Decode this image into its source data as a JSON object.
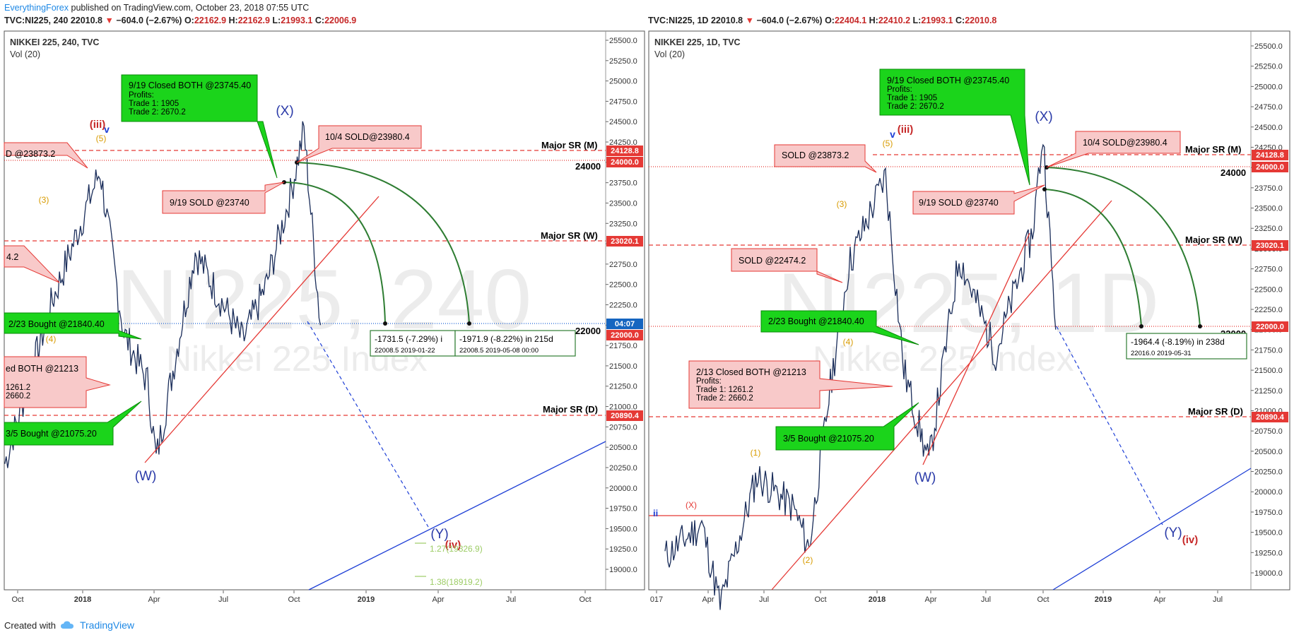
{
  "header": {
    "author": "EverythingForex",
    "published_text": " published on TradingView.com, October 23, 2018 07:55 UTC"
  },
  "left": {
    "quote_symbol": "TVC:NI225, 240",
    "quote_last": "22010.8",
    "quote_change": "−604.0 (−2.67%)",
    "quote_ohlc": {
      "o": "22162.9",
      "h": "22162.9",
      "l": "21993.1",
      "c": "22006.9"
    },
    "title": "NIKKEI 225, 240, TVC",
    "vol": "Vol (20)",
    "watermark1": "NI225, 240",
    "watermark2": "Nikkei 225 Index",
    "x_ticks": [
      "Oct",
      "2018",
      "Apr",
      "Jul",
      "Oct",
      "2019",
      "Apr",
      "Jul",
      "Oct"
    ],
    "y_ticks": [
      "25500.0",
      "25250.0",
      "25000.0",
      "24750.0",
      "24500.0",
      "24250.0",
      "24000.0",
      "23750.0",
      "23500.0",
      "23250.0",
      "23000.0",
      "22750.0",
      "22500.0",
      "22250.0",
      "22000.0",
      "21750.0",
      "21500.0",
      "21250.0",
      "21000.0",
      "20750.0",
      "20500.0",
      "20250.0",
      "20000.0",
      "19750.0",
      "19500.0",
      "19250.0",
      "19000.0"
    ],
    "badges": {
      "sr_m": "24128.8",
      "lvl_24000": "24000.0",
      "sr_w": "23020.1",
      "time": "04:07",
      "lvl_22000": "22000.0",
      "sr_d": "20890.4"
    },
    "labels": {
      "sr_m": "Major SR (M)",
      "sr_w": "Major SR (W)",
      "sr_d": "Major SR (D)",
      "level_24000": "24000",
      "level_22000": "22000",
      "wave_x": "(X)",
      "wave_w": "(W)",
      "wave_y": "(Y)",
      "wave_iii": "(iii)",
      "wave_iv": "(iv)",
      "wave_v": "v",
      "wave_5": "(5)",
      "wave_3": "(3)",
      "wave_4": "(4)",
      "fib_1": "1.27(19326.9)",
      "fib_2": "1.38(18919.2)"
    },
    "callouts": {
      "closed_both_title": "9/19 Closed BOTH @23745.40",
      "closed_both_lines": [
        "Profits:",
        "Trade 1: 1905",
        "Trade 2: 2670.2"
      ],
      "sold_1004": "10/4 SOLD@23980.4",
      "sold_0919": "9/19  SOLD @23740",
      "sold_23873": "D @23873.2",
      "sold_22474": "4.2",
      "bought_0223": "2/23 Bought @21840.40",
      "closed_0213_title": "ed BOTH @21213",
      "closed_0213_lines": [
        "1261.2",
        "2660.2"
      ],
      "bought_0305": "3/5 Bought @21075.20"
    },
    "measures": {
      "m1_main": "-1731.5 (-7.29%) i",
      "m1_sub": "22008.5       2019-01-22",
      "m2_main": "-1971.9 (-8.22%) in 215d",
      "m2_sub": "22008.5       2019-05-08  00:00"
    }
  },
  "right": {
    "quote_symbol": "TVC:NI225, 1D",
    "quote_last": "22010.8",
    "quote_change": "−604.0 (−2.67%)",
    "quote_ohlc": {
      "o": "22404.1",
      "h": "22410.2",
      "l": "21993.1",
      "c": "22010.8"
    },
    "title": "NIKKEI 225, 1D, TVC",
    "vol": "Vol (20)",
    "watermark1": "NI225, 1D",
    "watermark2": "Nikkei 225 Index",
    "x_ticks": [
      "017",
      "Apr",
      "Jul",
      "Oct",
      "2018",
      "Apr",
      "Jul",
      "Oct",
      "2019",
      "Apr",
      "Jul"
    ],
    "y_ticks": [
      "25500.0",
      "25250.0",
      "25000.0",
      "24750.0",
      "24500.0",
      "24250.0",
      "24000.0",
      "23750.0",
      "23500.0",
      "23250.0",
      "23000.0",
      "22750.0",
      "22500.0",
      "22250.0",
      "22000.0",
      "21750.0",
      "21500.0",
      "21250.0",
      "21000.0",
      "20750.0",
      "20500.0",
      "20250.0",
      "20000.0",
      "19750.0",
      "19500.0",
      "19250.0",
      "19000.0"
    ],
    "badges": {
      "sr_m": "24128.8",
      "lvl_24000": "24000.0",
      "sr_w": "23020.1",
      "lvl_22000": "22000.0",
      "sr_d": "20890.4"
    },
    "labels": {
      "sr_m": "Major SR (M)",
      "sr_w": "Major SR (W)",
      "sr_d": "Major SR (D)",
      "level_24000": "24000",
      "level_22000": "22000",
      "wave_x": "(X)",
      "wave_w": "(W)",
      "wave_y": "(Y)",
      "wave_iii": "(iii)",
      "wave_iv": "(iv)",
      "wave_v": "v",
      "wave_5": "(5)",
      "wave_3": "(3)",
      "wave_4": "(4)",
      "wave_1": "(1)",
      "wave_2": "(2)",
      "wave_x_small": "(X)",
      "wave_ii": "ii"
    },
    "callouts": {
      "closed_both_title": "9/19 Closed BOTH @23745.40",
      "closed_both_lines": [
        "Profits:",
        "Trade 1: 1905",
        "Trade 2: 2670.2"
      ],
      "sold_1004": "10/4 SOLD@23980.4",
      "sold_0919": "9/19  SOLD @23740",
      "sold_23873": "SOLD @23873.2",
      "sold_22474": "SOLD @22474.2",
      "bought_0223": "2/23 Bought @21840.40",
      "closed_0213_title": "2/13 Closed BOTH @21213",
      "closed_0213_lines": [
        "Profits:",
        "Trade 1: 1261.2",
        "Trade 2: 2660.2"
      ],
      "bought_0305": "3/5 Bought @21075.20"
    },
    "measures": {
      "m_main": "-1964.4 (-8.19%) in 238d",
      "m_sub": "22016.0       2019-05-31"
    }
  },
  "footer": {
    "created_with": "Created with",
    "brand": "TradingView"
  },
  "chart_data": [
    {
      "type": "line",
      "title": "NIKKEI 225, 240, TVC",
      "ylim": [
        18750,
        25600
      ],
      "levels": [
        {
          "name": "Major SR (M)",
          "value": 24128.8
        },
        {
          "name": "24000",
          "value": 24000.0
        },
        {
          "name": "Major SR (W)",
          "value": 23020.1
        },
        {
          "name": "22000",
          "value": 22000.0
        },
        {
          "name": "Major SR (D)",
          "value": 20890.4
        }
      ],
      "x": [
        "2017-09",
        "2017-11",
        "2018-01",
        "2018-02",
        "2018-03",
        "2018-03-26",
        "2018-05",
        "2018-07",
        "2018-08",
        "2018-09",
        "2018-10-02",
        "2018-10-23"
      ],
      "values": [
        20300,
        22300,
        23900,
        21900,
        21300,
        20350,
        22900,
        21800,
        22500,
        23600,
        24400,
        22000
      ]
    },
    {
      "type": "line",
      "title": "NIKKEI 225, 1D, TVC",
      "ylim": [
        18750,
        25600
      ],
      "levels": [
        {
          "name": "Major SR (M)",
          "value": 24128.8
        },
        {
          "name": "24000",
          "value": 24000.0
        },
        {
          "name": "Major SR (W)",
          "value": 23020.1
        },
        {
          "name": "22000",
          "value": 22000.0
        },
        {
          "name": "Major SR (D)",
          "value": 20890.4
        }
      ],
      "x": [
        "2017-01",
        "2017-03",
        "2017-04",
        "2017-06",
        "2017-08",
        "2017-09-10",
        "2017-10",
        "2017-11",
        "2018-01",
        "2018-02",
        "2018-03-26",
        "2018-05",
        "2018-07",
        "2018-09",
        "2018-10-02",
        "2018-10-23"
      ],
      "values": [
        19200,
        19600,
        18600,
        20200,
        19800,
        19300,
        21300,
        22800,
        23900,
        21500,
        20350,
        22900,
        21700,
        23200,
        24400,
        22000
      ]
    }
  ]
}
